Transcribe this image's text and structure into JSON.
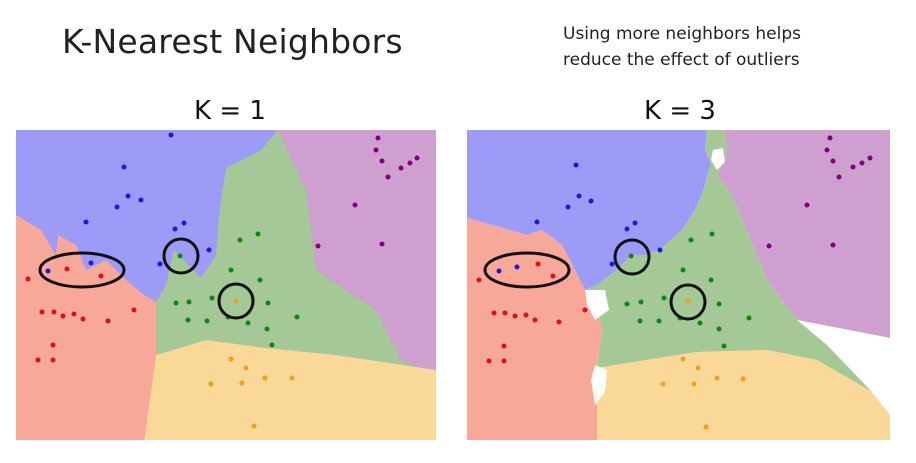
{
  "title": "K-Nearest Neighbors",
  "note": {
    "line1": "Using more neighbors helps",
    "line2": "reduce the effect of outliers"
  },
  "panels": [
    {
      "label": "K = 1"
    },
    {
      "label": "K = 3"
    }
  ],
  "colors": {
    "blue_region": "#9c9cf8",
    "purple_region": "#cfa0cf",
    "green_region": "#a4c896",
    "red_region": "#f7a898",
    "orange_region": "#fad898",
    "blue_point": "#1a1ad8",
    "purple_point": "#800080",
    "green_point": "#108810",
    "red_point": "#e01010",
    "orange_point": "#f0a018"
  }
}
